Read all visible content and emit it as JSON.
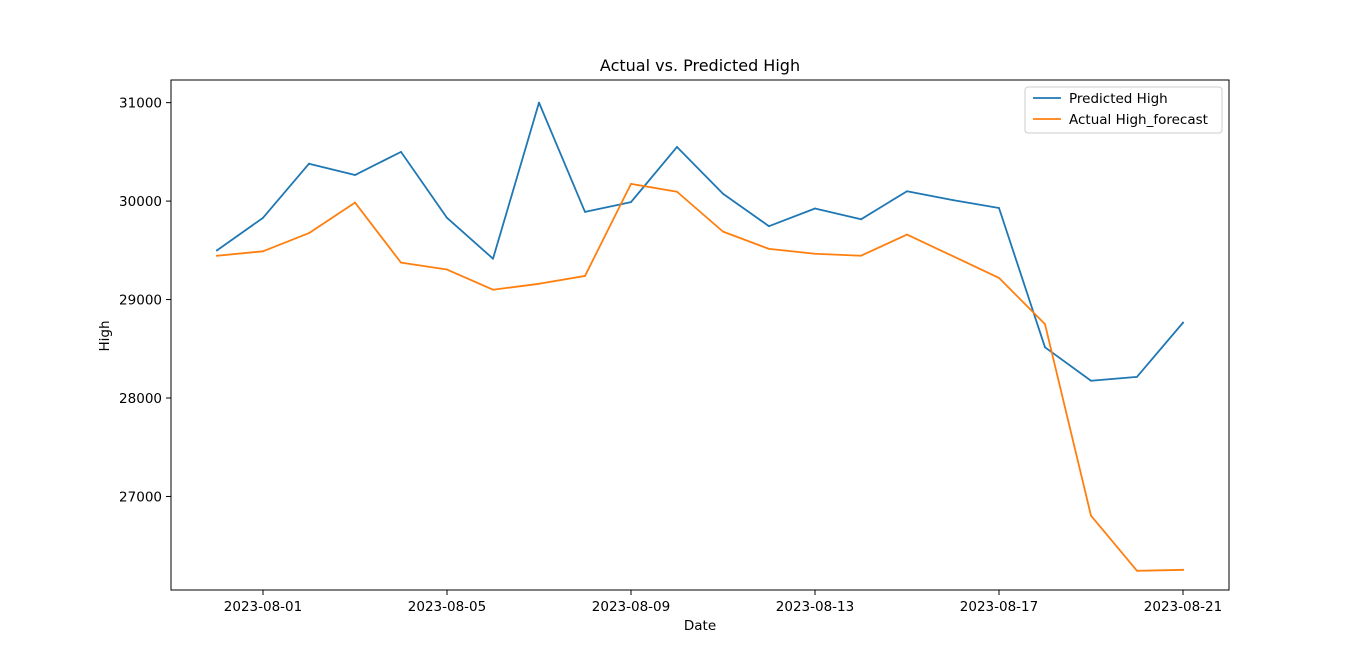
{
  "chart_data": {
    "type": "line",
    "title": "Actual vs. Predicted High",
    "xlabel": "Date",
    "ylabel": "High",
    "x": [
      "2023-07-31",
      "2023-08-01",
      "2023-08-02",
      "2023-08-03",
      "2023-08-04",
      "2023-08-05",
      "2023-08-06",
      "2023-08-07",
      "2023-08-08",
      "2023-08-09",
      "2023-08-10",
      "2023-08-11",
      "2023-08-12",
      "2023-08-13",
      "2023-08-14",
      "2023-08-15",
      "2023-08-16",
      "2023-08-17",
      "2023-08-18",
      "2023-08-19",
      "2023-08-20",
      "2023-08-21"
    ],
    "xticks": [
      "2023-08-01",
      "2023-08-05",
      "2023-08-09",
      "2023-08-13",
      "2023-08-17",
      "2023-08-21"
    ],
    "xlim": [
      "2023-07-30",
      "2023-08-22"
    ],
    "ylim": [
      26050,
      31230
    ],
    "yticks": [
      27000,
      28000,
      29000,
      30000,
      31000
    ],
    "grid": false,
    "legend_position": "top-right",
    "series": [
      {
        "name": "Predicted High",
        "color": "#1f77b4",
        "values": [
          29500,
          29830,
          30380,
          30265,
          30500,
          29830,
          29415,
          31000,
          29890,
          29990,
          30550,
          30075,
          29745,
          29925,
          29815,
          30100,
          30010,
          29930,
          28515,
          28175,
          28215,
          28765
        ]
      },
      {
        "name": "Actual High_forecast",
        "color": "#ff7f0e",
        "values": [
          29445,
          29490,
          29675,
          29985,
          29375,
          29305,
          29100,
          29160,
          29240,
          30175,
          30095,
          29690,
          29515,
          29465,
          29445,
          29660,
          29440,
          29220,
          28750,
          26805,
          26245,
          26255
        ]
      }
    ]
  }
}
